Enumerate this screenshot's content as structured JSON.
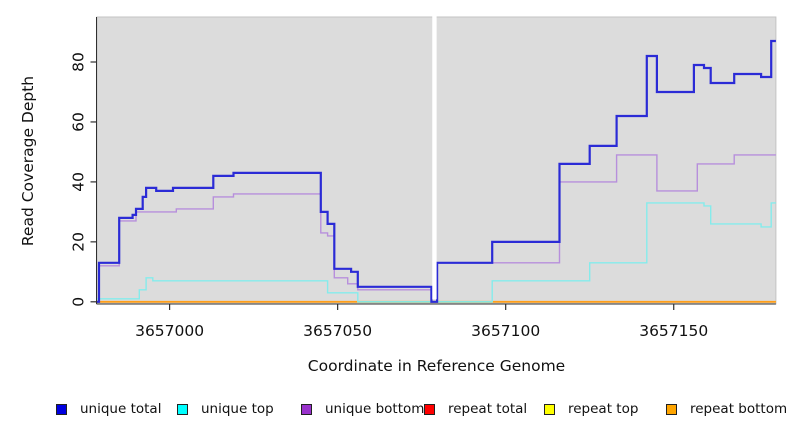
{
  "chart_data": {
    "type": "line",
    "subtype": "step-coverage-plot",
    "title": "",
    "xlabel": "Coordinate in Reference Genome",
    "ylabel": "Read Coverage Depth",
    "xlim": [
      3656978.4,
      3657180.4
    ],
    "ylim": [
      0,
      95
    ],
    "x_ticks": [
      "3657000",
      "3657050",
      "3657100",
      "3657150"
    ],
    "x_tick_values": [
      3657000,
      3657050,
      3657100,
      3657150
    ],
    "y_ticks": [
      "0",
      "20",
      "40",
      "60",
      "80"
    ],
    "y_tick_values": [
      0,
      20,
      40,
      60,
      80
    ],
    "grid": "off",
    "panel_background": "#dcdcdc",
    "axis_color": "#2f2f2f",
    "gap_band": {
      "x_start": 3657078.3,
      "x_end": 3657079.3,
      "color": "#ffffff"
    },
    "baseline_overlap": {
      "x_start": 3657056,
      "x_end": 3657096,
      "depth": 0,
      "color": "#85cb8e"
    },
    "series": [
      {
        "name": "unique total",
        "color": "#2b2bd6",
        "line_width": 2.2,
        "points": [
          [
            3656978.4,
            0
          ],
          [
            3656979.0,
            13
          ],
          [
            3656985,
            28
          ],
          [
            3656989,
            29
          ],
          [
            3656990,
            31
          ],
          [
            3656992,
            35
          ],
          [
            3656993,
            38
          ],
          [
            3656996,
            37
          ],
          [
            3657001,
            38
          ],
          [
            3657013,
            42
          ],
          [
            3657019,
            43
          ],
          [
            3657045,
            30
          ],
          [
            3657047,
            26
          ],
          [
            3657049,
            11
          ],
          [
            3657054,
            10
          ],
          [
            3657056,
            5
          ],
          [
            3657077.9,
            0
          ],
          [
            3657079.6,
            13
          ],
          [
            3657096,
            20
          ],
          [
            3657116,
            46
          ],
          [
            3657125,
            52
          ],
          [
            3657133,
            62
          ],
          [
            3657142,
            82
          ],
          [
            3657145,
            70
          ],
          [
            3657156,
            79
          ],
          [
            3657159,
            78
          ],
          [
            3657161,
            73
          ],
          [
            3657168,
            76
          ],
          [
            3657176,
            75
          ],
          [
            3657179,
            87
          ]
        ]
      },
      {
        "name": "unique top",
        "color": "#85ebeb",
        "line_width": 1.4,
        "points": [
          [
            3656978.4,
            1
          ],
          [
            3656991,
            4
          ],
          [
            3656993,
            8
          ],
          [
            3656995,
            7
          ],
          [
            3657047,
            3
          ],
          [
            3657056,
            0
          ],
          [
            3657096,
            7
          ],
          [
            3657125,
            13
          ],
          [
            3657142,
            33
          ],
          [
            3657159,
            32
          ],
          [
            3657161,
            26
          ],
          [
            3657176,
            25
          ],
          [
            3657179,
            33
          ]
        ]
      },
      {
        "name": "unique bottom",
        "color": "#b78fdc",
        "line_width": 1.4,
        "points": [
          [
            3656978.4,
            0
          ],
          [
            3656979.0,
            12
          ],
          [
            3656985,
            27
          ],
          [
            3656990,
            30
          ],
          [
            3657002,
            31
          ],
          [
            3657013,
            35
          ],
          [
            3657019,
            36
          ],
          [
            3657045,
            23
          ],
          [
            3657047,
            22
          ],
          [
            3657049,
            8
          ],
          [
            3657053,
            6
          ],
          [
            3657056,
            4
          ],
          [
            3657077.9,
            0
          ],
          [
            3657079.6,
            13
          ],
          [
            3657116,
            40
          ],
          [
            3657133,
            49
          ],
          [
            3657145,
            37
          ],
          [
            3657157,
            46
          ],
          [
            3657168,
            49
          ]
        ]
      },
      {
        "name": "repeat total",
        "color": "#e03030",
        "line_width": 1.4,
        "points": [
          [
            3656978.4,
            0
          ]
        ]
      },
      {
        "name": "repeat top",
        "color": "#f2f24a",
        "line_width": 1.4,
        "points": [
          [
            3656978.4,
            0
          ]
        ]
      },
      {
        "name": "repeat bottom",
        "color": "#ff9f1a",
        "line_width": 1.8,
        "points": [
          [
            3656978.4,
            0
          ]
        ]
      }
    ],
    "legend": {
      "position": "bottom",
      "items": [
        {
          "label": "unique total",
          "swatch": "#0000e0"
        },
        {
          "label": "unique top",
          "swatch": "#00ffff"
        },
        {
          "label": "unique bottom",
          "swatch": "#9932cc"
        },
        {
          "label": "repeat total",
          "swatch": "#ff0000"
        },
        {
          "label": "repeat top",
          "swatch": "#ffff00"
        },
        {
          "label": "repeat bottom",
          "swatch": "#ffa500"
        }
      ]
    }
  }
}
